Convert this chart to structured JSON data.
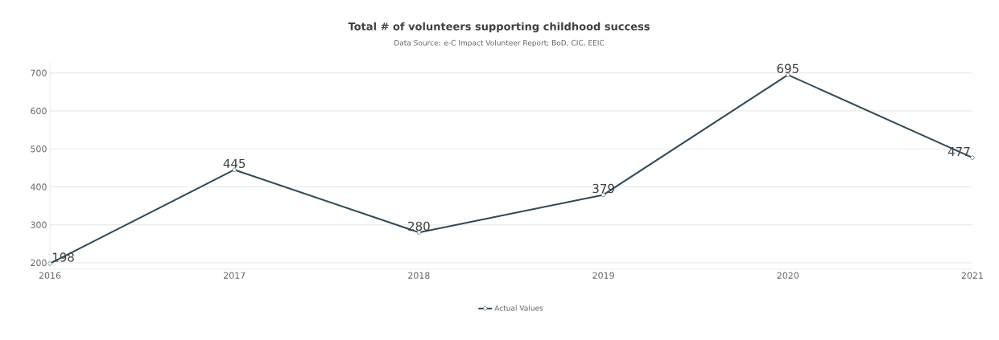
{
  "chart_data": {
    "type": "line",
    "title": "Total # of volunteers supporting childhood success",
    "subtitle": "Data Source: e-C Impact Volunteer Report; BoD, CIC, EEIC",
    "x": [
      2016,
      2017,
      2018,
      2019,
      2020,
      2021
    ],
    "series": [
      {
        "name": "Actual Values",
        "color": "#2e4a5a",
        "values": [
          198,
          445,
          280,
          379,
          695,
          477
        ]
      }
    ],
    "xlim": [
      2016,
      2021
    ],
    "xticks": [
      2016,
      2017,
      2018,
      2019,
      2020,
      2021
    ],
    "ylim": [
      183,
      727
    ],
    "yticks": [
      200,
      300,
      400,
      500,
      600,
      700
    ],
    "grid": "y",
    "legend": "bottom",
    "marker": "circle",
    "line_style": "solid",
    "data_labels": true
  }
}
